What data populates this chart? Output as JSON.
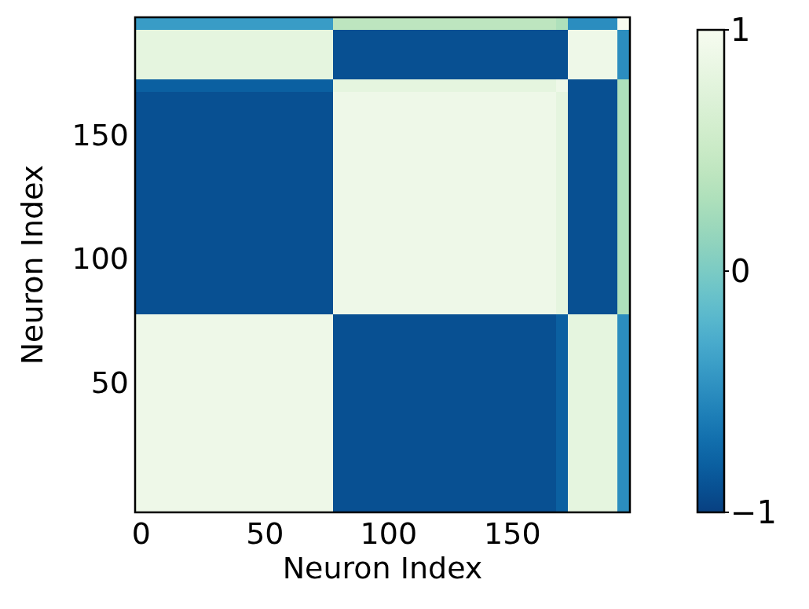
{
  "chart_data": {
    "type": "heatmap",
    "xlabel": "Neuron Index",
    "ylabel": "Neuron Index",
    "categories": [
      "0",
      null,
      null,
      null,
      null,
      null,
      null,
      null,
      null,
      null,
      "50",
      null,
      null,
      null,
      null,
      null,
      null,
      null,
      null,
      null,
      "100",
      null,
      null,
      null,
      null,
      null,
      null,
      null,
      null,
      null,
      "150",
      null,
      null,
      null,
      null,
      null,
      null,
      null,
      null,
      null
    ],
    "y_categories": [
      null,
      null,
      null,
      null,
      null,
      null,
      null,
      null,
      null,
      "150",
      null,
      null,
      null,
      null,
      null,
      null,
      null,
      null,
      null,
      "100",
      null,
      null,
      null,
      null,
      null,
      null,
      null,
      null,
      null,
      "50",
      null,
      null,
      null,
      null,
      null,
      null,
      null,
      null,
      null,
      null
    ],
    "clim": [
      -1,
      1
    ],
    "cticks": [
      {
        "value": -1,
        "label": "−1"
      },
      0,
      1
    ],
    "cells": [
      [
        -0.4,
        -0.4,
        -0.4,
        -0.4,
        -0.4,
        -0.4,
        -0.4,
        -0.4,
        -0.4,
        -0.4,
        -0.4,
        -0.4,
        -0.4,
        -0.4,
        -0.4,
        -0.4,
        0.4,
        0.4,
        0.4,
        0.4,
        0.4,
        0.4,
        0.4,
        0.4,
        0.4,
        0.4,
        0.4,
        0.4,
        0.4,
        0.4,
        0.4,
        0.4,
        0.4,
        0.4,
        0.3,
        -0.5,
        -0.5,
        -0.5,
        -0.5,
        1
      ],
      [
        0.8,
        0.8,
        0.8,
        0.8,
        0.8,
        0.8,
        0.8,
        0.8,
        0.8,
        0.8,
        0.8,
        0.8,
        0.8,
        0.8,
        0.8,
        0.8,
        -0.9,
        -0.9,
        -0.9,
        -0.9,
        -0.9,
        -0.9,
        -0.9,
        -0.9,
        -0.9,
        -0.9,
        -0.9,
        -0.9,
        -0.9,
        -0.9,
        -0.9,
        -0.9,
        -0.9,
        -0.9,
        -0.9,
        0.9,
        0.9,
        0.9,
        0.9,
        -0.5
      ],
      [
        0.8,
        0.8,
        0.8,
        0.8,
        0.8,
        0.8,
        0.8,
        0.8,
        0.8,
        0.8,
        0.8,
        0.8,
        0.8,
        0.8,
        0.8,
        0.8,
        -0.9,
        -0.9,
        -0.9,
        -0.9,
        -0.9,
        -0.9,
        -0.9,
        -0.9,
        -0.9,
        -0.9,
        -0.9,
        -0.9,
        -0.9,
        -0.9,
        -0.9,
        -0.9,
        -0.9,
        -0.9,
        -0.9,
        0.9,
        0.9,
        0.9,
        0.9,
        -0.5
      ],
      [
        0.8,
        0.8,
        0.8,
        0.8,
        0.8,
        0.8,
        0.8,
        0.8,
        0.8,
        0.8,
        0.8,
        0.8,
        0.8,
        0.8,
        0.8,
        0.8,
        -0.9,
        -0.9,
        -0.9,
        -0.9,
        -0.9,
        -0.9,
        -0.9,
        -0.9,
        -0.9,
        -0.9,
        -0.9,
        -0.9,
        -0.9,
        -0.9,
        -0.9,
        -0.9,
        -0.9,
        -0.9,
        -0.9,
        0.9,
        0.9,
        0.9,
        0.9,
        -0.5
      ],
      [
        0.8,
        0.8,
        0.8,
        0.8,
        0.8,
        0.8,
        0.8,
        0.8,
        0.8,
        0.8,
        0.8,
        0.8,
        0.8,
        0.8,
        0.8,
        0.8,
        -0.9,
        -0.9,
        -0.9,
        -0.9,
        -0.9,
        -0.9,
        -0.9,
        -0.9,
        -0.9,
        -0.9,
        -0.9,
        -0.9,
        -0.9,
        -0.9,
        -0.9,
        -0.9,
        -0.9,
        -0.9,
        -0.9,
        0.9,
        0.9,
        0.9,
        0.9,
        -0.5
      ],
      [
        -0.8,
        -0.8,
        -0.8,
        -0.8,
        -0.8,
        -0.8,
        -0.8,
        -0.8,
        -0.8,
        -0.8,
        -0.8,
        -0.8,
        -0.8,
        -0.8,
        -0.8,
        -0.8,
        0.8,
        0.8,
        0.8,
        0.8,
        0.8,
        0.8,
        0.8,
        0.8,
        0.8,
        0.8,
        0.8,
        0.8,
        0.8,
        0.8,
        0.8,
        0.8,
        0.8,
        0.8,
        0.9,
        -0.9,
        -0.9,
        -0.9,
        -0.9,
        0.3
      ],
      [
        -0.9,
        -0.9,
        -0.9,
        -0.9,
        -0.9,
        -0.9,
        -0.9,
        -0.9,
        -0.9,
        -0.9,
        -0.9,
        -0.9,
        -0.9,
        -0.9,
        -0.9,
        -0.9,
        0.9,
        0.9,
        0.9,
        0.9,
        0.9,
        0.9,
        0.9,
        0.9,
        0.9,
        0.9,
        0.9,
        0.9,
        0.9,
        0.9,
        0.9,
        0.9,
        0.9,
        0.9,
        0.8,
        -0.9,
        -0.9,
        -0.9,
        -0.9,
        0.3
      ],
      [
        -0.9,
        -0.9,
        -0.9,
        -0.9,
        -0.9,
        -0.9,
        -0.9,
        -0.9,
        -0.9,
        -0.9,
        -0.9,
        -0.9,
        -0.9,
        -0.9,
        -0.9,
        -0.9,
        0.9,
        0.9,
        0.9,
        0.9,
        0.9,
        0.9,
        0.9,
        0.9,
        0.9,
        0.9,
        0.9,
        0.9,
        0.9,
        0.9,
        0.9,
        0.9,
        0.9,
        0.9,
        0.8,
        -0.9,
        -0.9,
        -0.9,
        -0.9,
        0.3
      ],
      [
        -0.9,
        -0.9,
        -0.9,
        -0.9,
        -0.9,
        -0.9,
        -0.9,
        -0.9,
        -0.9,
        -0.9,
        -0.9,
        -0.9,
        -0.9,
        -0.9,
        -0.9,
        -0.9,
        0.9,
        0.9,
        0.9,
        0.9,
        0.9,
        0.9,
        0.9,
        0.9,
        0.9,
        0.9,
        0.9,
        0.9,
        0.9,
        0.9,
        0.9,
        0.9,
        0.9,
        0.9,
        0.8,
        -0.9,
        -0.9,
        -0.9,
        -0.9,
        0.3
      ],
      [
        -0.9,
        -0.9,
        -0.9,
        -0.9,
        -0.9,
        -0.9,
        -0.9,
        -0.9,
        -0.9,
        -0.9,
        -0.9,
        -0.9,
        -0.9,
        -0.9,
        -0.9,
        -0.9,
        0.9,
        0.9,
        0.9,
        0.9,
        0.9,
        0.9,
        0.9,
        0.9,
        0.9,
        0.9,
        0.9,
        0.9,
        0.9,
        0.9,
        0.9,
        0.9,
        0.9,
        0.9,
        0.8,
        -0.9,
        -0.9,
        -0.9,
        -0.9,
        0.3
      ],
      [
        -0.9,
        -0.9,
        -0.9,
        -0.9,
        -0.9,
        -0.9,
        -0.9,
        -0.9,
        -0.9,
        -0.9,
        -0.9,
        -0.9,
        -0.9,
        -0.9,
        -0.9,
        -0.9,
        0.9,
        0.9,
        0.9,
        0.9,
        0.9,
        0.9,
        0.9,
        0.9,
        0.9,
        0.9,
        0.9,
        0.9,
        0.9,
        0.9,
        0.9,
        0.9,
        0.9,
        0.9,
        0.8,
        -0.9,
        -0.9,
        -0.9,
        -0.9,
        0.3
      ],
      [
        -0.9,
        -0.9,
        -0.9,
        -0.9,
        -0.9,
        -0.9,
        -0.9,
        -0.9,
        -0.9,
        -0.9,
        -0.9,
        -0.9,
        -0.9,
        -0.9,
        -0.9,
        -0.9,
        0.9,
        0.9,
        0.9,
        0.9,
        0.9,
        0.9,
        0.9,
        0.9,
        0.9,
        0.9,
        0.9,
        0.9,
        0.9,
        0.9,
        0.9,
        0.9,
        0.9,
        0.9,
        0.8,
        -0.9,
        -0.9,
        -0.9,
        -0.9,
        0.3
      ],
      [
        -0.9,
        -0.9,
        -0.9,
        -0.9,
        -0.9,
        -0.9,
        -0.9,
        -0.9,
        -0.9,
        -0.9,
        -0.9,
        -0.9,
        -0.9,
        -0.9,
        -0.9,
        -0.9,
        0.9,
        0.9,
        0.9,
        0.9,
        0.9,
        0.9,
        0.9,
        0.9,
        0.9,
        0.9,
        0.9,
        0.9,
        0.9,
        0.9,
        0.9,
        0.9,
        0.9,
        0.9,
        0.8,
        -0.9,
        -0.9,
        -0.9,
        -0.9,
        0.3
      ],
      [
        -0.9,
        -0.9,
        -0.9,
        -0.9,
        -0.9,
        -0.9,
        -0.9,
        -0.9,
        -0.9,
        -0.9,
        -0.9,
        -0.9,
        -0.9,
        -0.9,
        -0.9,
        -0.9,
        0.9,
        0.9,
        0.9,
        0.9,
        0.9,
        0.9,
        0.9,
        0.9,
        0.9,
        0.9,
        0.9,
        0.9,
        0.9,
        0.9,
        0.9,
        0.9,
        0.9,
        0.9,
        0.8,
        -0.9,
        -0.9,
        -0.9,
        -0.9,
        0.3
      ],
      [
        -0.9,
        -0.9,
        -0.9,
        -0.9,
        -0.9,
        -0.9,
        -0.9,
        -0.9,
        -0.9,
        -0.9,
        -0.9,
        -0.9,
        -0.9,
        -0.9,
        -0.9,
        -0.9,
        0.9,
        0.9,
        0.9,
        0.9,
        0.9,
        0.9,
        0.9,
        0.9,
        0.9,
        0.9,
        0.9,
        0.9,
        0.9,
        0.9,
        0.9,
        0.9,
        0.9,
        0.9,
        0.8,
        -0.9,
        -0.9,
        -0.9,
        -0.9,
        0.3
      ],
      [
        -0.9,
        -0.9,
        -0.9,
        -0.9,
        -0.9,
        -0.9,
        -0.9,
        -0.9,
        -0.9,
        -0.9,
        -0.9,
        -0.9,
        -0.9,
        -0.9,
        -0.9,
        -0.9,
        0.9,
        0.9,
        0.9,
        0.9,
        0.9,
        0.9,
        0.9,
        0.9,
        0.9,
        0.9,
        0.9,
        0.9,
        0.9,
        0.9,
        0.9,
        0.9,
        0.9,
        0.9,
        0.8,
        -0.9,
        -0.9,
        -0.9,
        -0.9,
        0.3
      ],
      [
        -0.9,
        -0.9,
        -0.9,
        -0.9,
        -0.9,
        -0.9,
        -0.9,
        -0.9,
        -0.9,
        -0.9,
        -0.9,
        -0.9,
        -0.9,
        -0.9,
        -0.9,
        -0.9,
        0.9,
        0.9,
        0.9,
        0.9,
        0.9,
        0.9,
        0.9,
        0.9,
        0.9,
        0.9,
        0.9,
        0.9,
        0.9,
        0.9,
        0.9,
        0.9,
        0.9,
        0.9,
        0.8,
        -0.9,
        -0.9,
        -0.9,
        -0.9,
        0.3
      ],
      [
        -0.9,
        -0.9,
        -0.9,
        -0.9,
        -0.9,
        -0.9,
        -0.9,
        -0.9,
        -0.9,
        -0.9,
        -0.9,
        -0.9,
        -0.9,
        -0.9,
        -0.9,
        -0.9,
        0.9,
        0.9,
        0.9,
        0.9,
        0.9,
        0.9,
        0.9,
        0.9,
        0.9,
        0.9,
        0.9,
        0.9,
        0.9,
        0.9,
        0.9,
        0.9,
        0.9,
        0.9,
        0.8,
        -0.9,
        -0.9,
        -0.9,
        -0.9,
        0.3
      ],
      [
        -0.9,
        -0.9,
        -0.9,
        -0.9,
        -0.9,
        -0.9,
        -0.9,
        -0.9,
        -0.9,
        -0.9,
        -0.9,
        -0.9,
        -0.9,
        -0.9,
        -0.9,
        -0.9,
        0.9,
        0.9,
        0.9,
        0.9,
        0.9,
        0.9,
        0.9,
        0.9,
        0.9,
        0.9,
        0.9,
        0.9,
        0.9,
        0.9,
        0.9,
        0.9,
        0.9,
        0.9,
        0.8,
        -0.9,
        -0.9,
        -0.9,
        -0.9,
        0.3
      ],
      [
        -0.9,
        -0.9,
        -0.9,
        -0.9,
        -0.9,
        -0.9,
        -0.9,
        -0.9,
        -0.9,
        -0.9,
        -0.9,
        -0.9,
        -0.9,
        -0.9,
        -0.9,
        -0.9,
        0.9,
        0.9,
        0.9,
        0.9,
        0.9,
        0.9,
        0.9,
        0.9,
        0.9,
        0.9,
        0.9,
        0.9,
        0.9,
        0.9,
        0.9,
        0.9,
        0.9,
        0.9,
        0.8,
        -0.9,
        -0.9,
        -0.9,
        -0.9,
        0.3
      ],
      [
        -0.9,
        -0.9,
        -0.9,
        -0.9,
        -0.9,
        -0.9,
        -0.9,
        -0.9,
        -0.9,
        -0.9,
        -0.9,
        -0.9,
        -0.9,
        -0.9,
        -0.9,
        -0.9,
        0.9,
        0.9,
        0.9,
        0.9,
        0.9,
        0.9,
        0.9,
        0.9,
        0.9,
        0.9,
        0.9,
        0.9,
        0.9,
        0.9,
        0.9,
        0.9,
        0.9,
        0.9,
        0.8,
        -0.9,
        -0.9,
        -0.9,
        -0.9,
        0.3
      ],
      [
        -0.9,
        -0.9,
        -0.9,
        -0.9,
        -0.9,
        -0.9,
        -0.9,
        -0.9,
        -0.9,
        -0.9,
        -0.9,
        -0.9,
        -0.9,
        -0.9,
        -0.9,
        -0.9,
        0.9,
        0.9,
        0.9,
        0.9,
        0.9,
        0.9,
        0.9,
        0.9,
        0.9,
        0.9,
        0.9,
        0.9,
        0.9,
        0.9,
        0.9,
        0.9,
        0.9,
        0.9,
        0.8,
        -0.9,
        -0.9,
        -0.9,
        -0.9,
        0.3
      ],
      [
        -0.9,
        -0.9,
        -0.9,
        -0.9,
        -0.9,
        -0.9,
        -0.9,
        -0.9,
        -0.9,
        -0.9,
        -0.9,
        -0.9,
        -0.9,
        -0.9,
        -0.9,
        -0.9,
        0.9,
        0.9,
        0.9,
        0.9,
        0.9,
        0.9,
        0.9,
        0.9,
        0.9,
        0.9,
        0.9,
        0.9,
        0.9,
        0.9,
        0.9,
        0.9,
        0.9,
        0.9,
        0.8,
        -0.9,
        -0.9,
        -0.9,
        -0.9,
        0.3
      ],
      [
        -0.9,
        -0.9,
        -0.9,
        -0.9,
        -0.9,
        -0.9,
        -0.9,
        -0.9,
        -0.9,
        -0.9,
        -0.9,
        -0.9,
        -0.9,
        -0.9,
        -0.9,
        -0.9,
        0.9,
        0.9,
        0.9,
        0.9,
        0.9,
        0.9,
        0.9,
        0.9,
        0.9,
        0.9,
        0.9,
        0.9,
        0.9,
        0.9,
        0.9,
        0.9,
        0.9,
        0.9,
        0.8,
        -0.9,
        -0.9,
        -0.9,
        -0.9,
        0.3
      ],
      [
        0.9,
        0.9,
        0.9,
        0.9,
        0.9,
        0.9,
        0.9,
        0.9,
        0.9,
        0.9,
        0.9,
        0.9,
        0.9,
        0.9,
        0.9,
        0.9,
        -0.9,
        -0.9,
        -0.9,
        -0.9,
        -0.9,
        -0.9,
        -0.9,
        -0.9,
        -0.9,
        -0.9,
        -0.9,
        -0.9,
        -0.9,
        -0.9,
        -0.9,
        -0.9,
        -0.9,
        -0.9,
        -0.8,
        0.8,
        0.8,
        0.8,
        0.8,
        -0.5
      ],
      [
        0.9,
        0.9,
        0.9,
        0.9,
        0.9,
        0.9,
        0.9,
        0.9,
        0.9,
        0.9,
        0.9,
        0.9,
        0.9,
        0.9,
        0.9,
        0.9,
        -0.9,
        -0.9,
        -0.9,
        -0.9,
        -0.9,
        -0.9,
        -0.9,
        -0.9,
        -0.9,
        -0.9,
        -0.9,
        -0.9,
        -0.9,
        -0.9,
        -0.9,
        -0.9,
        -0.9,
        -0.9,
        -0.8,
        0.8,
        0.8,
        0.8,
        0.8,
        -0.5
      ],
      [
        0.9,
        0.9,
        0.9,
        0.9,
        0.9,
        0.9,
        0.9,
        0.9,
        0.9,
        0.9,
        0.9,
        0.9,
        0.9,
        0.9,
        0.9,
        0.9,
        -0.9,
        -0.9,
        -0.9,
        -0.9,
        -0.9,
        -0.9,
        -0.9,
        -0.9,
        -0.9,
        -0.9,
        -0.9,
        -0.9,
        -0.9,
        -0.9,
        -0.9,
        -0.9,
        -0.9,
        -0.9,
        -0.8,
        0.8,
        0.8,
        0.8,
        0.8,
        -0.5
      ],
      [
        0.9,
        0.9,
        0.9,
        0.9,
        0.9,
        0.9,
        0.9,
        0.9,
        0.9,
        0.9,
        0.9,
        0.9,
        0.9,
        0.9,
        0.9,
        0.9,
        -0.9,
        -0.9,
        -0.9,
        -0.9,
        -0.9,
        -0.9,
        -0.9,
        -0.9,
        -0.9,
        -0.9,
        -0.9,
        -0.9,
        -0.9,
        -0.9,
        -0.9,
        -0.9,
        -0.9,
        -0.9,
        -0.8,
        0.8,
        0.8,
        0.8,
        0.8,
        -0.5
      ],
      [
        0.9,
        0.9,
        0.9,
        0.9,
        0.9,
        0.9,
        0.9,
        0.9,
        0.9,
        0.9,
        0.9,
        0.9,
        0.9,
        0.9,
        0.9,
        0.9,
        -0.9,
        -0.9,
        -0.9,
        -0.9,
        -0.9,
        -0.9,
        -0.9,
        -0.9,
        -0.9,
        -0.9,
        -0.9,
        -0.9,
        -0.9,
        -0.9,
        -0.9,
        -0.9,
        -0.9,
        -0.9,
        -0.8,
        0.8,
        0.8,
        0.8,
        0.8,
        -0.5
      ],
      [
        0.9,
        0.9,
        0.9,
        0.9,
        0.9,
        0.9,
        0.9,
        0.9,
        0.9,
        0.9,
        0.9,
        0.9,
        0.9,
        0.9,
        0.9,
        0.9,
        -0.9,
        -0.9,
        -0.9,
        -0.9,
        -0.9,
        -0.9,
        -0.9,
        -0.9,
        -0.9,
        -0.9,
        -0.9,
        -0.9,
        -0.9,
        -0.9,
        -0.9,
        -0.9,
        -0.9,
        -0.9,
        -0.8,
        0.8,
        0.8,
        0.8,
        0.8,
        -0.5
      ],
      [
        0.9,
        0.9,
        0.9,
        0.9,
        0.9,
        0.9,
        0.9,
        0.9,
        0.9,
        0.9,
        0.9,
        0.9,
        0.9,
        0.9,
        0.9,
        0.9,
        -0.9,
        -0.9,
        -0.9,
        -0.9,
        -0.9,
        -0.9,
        -0.9,
        -0.9,
        -0.9,
        -0.9,
        -0.9,
        -0.9,
        -0.9,
        -0.9,
        -0.9,
        -0.9,
        -0.9,
        -0.9,
        -0.8,
        0.8,
        0.8,
        0.8,
        0.8,
        -0.5
      ],
      [
        0.9,
        0.9,
        0.9,
        0.9,
        0.9,
        0.9,
        0.9,
        0.9,
        0.9,
        0.9,
        0.9,
        0.9,
        0.9,
        0.9,
        0.9,
        0.9,
        -0.9,
        -0.9,
        -0.9,
        -0.9,
        -0.9,
        -0.9,
        -0.9,
        -0.9,
        -0.9,
        -0.9,
        -0.9,
        -0.9,
        -0.9,
        -0.9,
        -0.9,
        -0.9,
        -0.9,
        -0.9,
        -0.8,
        0.8,
        0.8,
        0.8,
        0.8,
        -0.5
      ],
      [
        0.9,
        0.9,
        0.9,
        0.9,
        0.9,
        0.9,
        0.9,
        0.9,
        0.9,
        0.9,
        0.9,
        0.9,
        0.9,
        0.9,
        0.9,
        0.9,
        -0.9,
        -0.9,
        -0.9,
        -0.9,
        -0.9,
        -0.9,
        -0.9,
        -0.9,
        -0.9,
        -0.9,
        -0.9,
        -0.9,
        -0.9,
        -0.9,
        -0.9,
        -0.9,
        -0.9,
        -0.9,
        -0.8,
        0.8,
        0.8,
        0.8,
        0.8,
        -0.5
      ],
      [
        0.9,
        0.9,
        0.9,
        0.9,
        0.9,
        0.9,
        0.9,
        0.9,
        0.9,
        0.9,
        0.9,
        0.9,
        0.9,
        0.9,
        0.9,
        0.9,
        -0.9,
        -0.9,
        -0.9,
        -0.9,
        -0.9,
        -0.9,
        -0.9,
        -0.9,
        -0.9,
        -0.9,
        -0.9,
        -0.9,
        -0.9,
        -0.9,
        -0.9,
        -0.9,
        -0.9,
        -0.9,
        -0.8,
        0.8,
        0.8,
        0.8,
        0.8,
        -0.5
      ],
      [
        0.9,
        0.9,
        0.9,
        0.9,
        0.9,
        0.9,
        0.9,
        0.9,
        0.9,
        0.9,
        0.9,
        0.9,
        0.9,
        0.9,
        0.9,
        0.9,
        -0.9,
        -0.9,
        -0.9,
        -0.9,
        -0.9,
        -0.9,
        -0.9,
        -0.9,
        -0.9,
        -0.9,
        -0.9,
        -0.9,
        -0.9,
        -0.9,
        -0.9,
        -0.9,
        -0.9,
        -0.9,
        -0.8,
        0.8,
        0.8,
        0.8,
        0.8,
        -0.5
      ],
      [
        0.9,
        0.9,
        0.9,
        0.9,
        0.9,
        0.9,
        0.9,
        0.9,
        0.9,
        0.9,
        0.9,
        0.9,
        0.9,
        0.9,
        0.9,
        0.9,
        -0.9,
        -0.9,
        -0.9,
        -0.9,
        -0.9,
        -0.9,
        -0.9,
        -0.9,
        -0.9,
        -0.9,
        -0.9,
        -0.9,
        -0.9,
        -0.9,
        -0.9,
        -0.9,
        -0.9,
        -0.9,
        -0.8,
        0.8,
        0.8,
        0.8,
        0.8,
        -0.5
      ],
      [
        0.9,
        0.9,
        0.9,
        0.9,
        0.9,
        0.9,
        0.9,
        0.9,
        0.9,
        0.9,
        0.9,
        0.9,
        0.9,
        0.9,
        0.9,
        0.9,
        -0.9,
        -0.9,
        -0.9,
        -0.9,
        -0.9,
        -0.9,
        -0.9,
        -0.9,
        -0.9,
        -0.9,
        -0.9,
        -0.9,
        -0.9,
        -0.9,
        -0.9,
        -0.9,
        -0.9,
        -0.9,
        -0.8,
        0.8,
        0.8,
        0.8,
        0.8,
        -0.5
      ],
      [
        0.9,
        0.9,
        0.9,
        0.9,
        0.9,
        0.9,
        0.9,
        0.9,
        0.9,
        0.9,
        0.9,
        0.9,
        0.9,
        0.9,
        0.9,
        0.9,
        -0.9,
        -0.9,
        -0.9,
        -0.9,
        -0.9,
        -0.9,
        -0.9,
        -0.9,
        -0.9,
        -0.9,
        -0.9,
        -0.9,
        -0.9,
        -0.9,
        -0.9,
        -0.9,
        -0.9,
        -0.9,
        -0.8,
        0.8,
        0.8,
        0.8,
        0.8,
        -0.5
      ],
      [
        0.9,
        0.9,
        0.9,
        0.9,
        0.9,
        0.9,
        0.9,
        0.9,
        0.9,
        0.9,
        0.9,
        0.9,
        0.9,
        0.9,
        0.9,
        0.9,
        -0.9,
        -0.9,
        -0.9,
        -0.9,
        -0.9,
        -0.9,
        -0.9,
        -0.9,
        -0.9,
        -0.9,
        -0.9,
        -0.9,
        -0.9,
        -0.9,
        -0.9,
        -0.9,
        -0.9,
        -0.9,
        -0.8,
        0.8,
        0.8,
        0.8,
        0.8,
        -0.5
      ],
      [
        0.9,
        0.9,
        0.9,
        0.9,
        0.9,
        0.9,
        0.9,
        0.9,
        0.9,
        0.9,
        0.9,
        0.9,
        0.9,
        0.9,
        0.9,
        0.9,
        -0.9,
        -0.9,
        -0.9,
        -0.9,
        -0.9,
        -0.9,
        -0.9,
        -0.9,
        -0.9,
        -0.9,
        -0.9,
        -0.9,
        -0.9,
        -0.9,
        -0.9,
        -0.9,
        -0.9,
        -0.9,
        -0.8,
        0.8,
        0.8,
        0.8,
        0.8,
        -0.5
      ]
    ]
  }
}
